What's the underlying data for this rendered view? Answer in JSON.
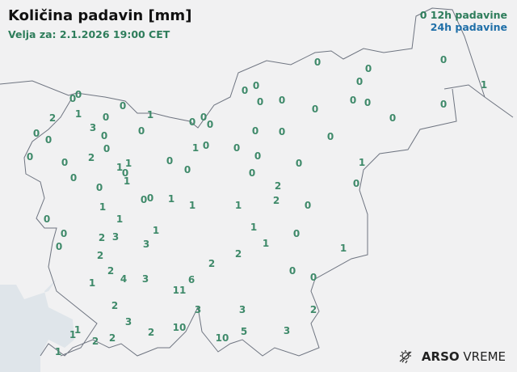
{
  "title": "Količina padavin [mm]",
  "valid": "Velja za: 2.1.2026 19:00 CET",
  "legend": {
    "sample": "0",
    "h12": "12h padavine",
    "h24": "24h padavine",
    "color_12h": "#2e7d5b",
    "color_24h": "#1f6fa8"
  },
  "logo": {
    "icon": "sun-rain-icon",
    "brand": "ARSO",
    "suffix": "VREME"
  },
  "stations": [
    "0",
    "0",
    "2",
    "1",
    "0",
    "0",
    "1",
    "0",
    "0",
    "0",
    "3",
    "0",
    "0",
    "0",
    "0",
    "0",
    "0",
    "0",
    "2",
    "1",
    "1",
    "0",
    "1",
    "0",
    "0",
    "1",
    "0",
    "0",
    "0",
    "0",
    "0",
    "0",
    "1",
    "1",
    "1",
    "1",
    "1",
    "0",
    "0",
    "0",
    "2",
    "3",
    "3",
    "1",
    "2",
    "2",
    "4",
    "3",
    "1",
    "2",
    "2",
    "1",
    "1",
    "6",
    "11",
    "2",
    "3",
    "2",
    "10",
    "3",
    "3",
    "10",
    "5",
    "3",
    "1",
    "1",
    "2",
    "2",
    "1",
    "2",
    "0",
    "0",
    "0",
    "1",
    "2",
    "2",
    "0",
    "0",
    "1",
    "0",
    "0",
    "0",
    "0",
    "0",
    "0",
    "0",
    "0",
    "0",
    "0",
    "0",
    "0",
    "0",
    "0",
    "0",
    "0",
    "0",
    "0",
    "0",
    "1"
  ]
}
